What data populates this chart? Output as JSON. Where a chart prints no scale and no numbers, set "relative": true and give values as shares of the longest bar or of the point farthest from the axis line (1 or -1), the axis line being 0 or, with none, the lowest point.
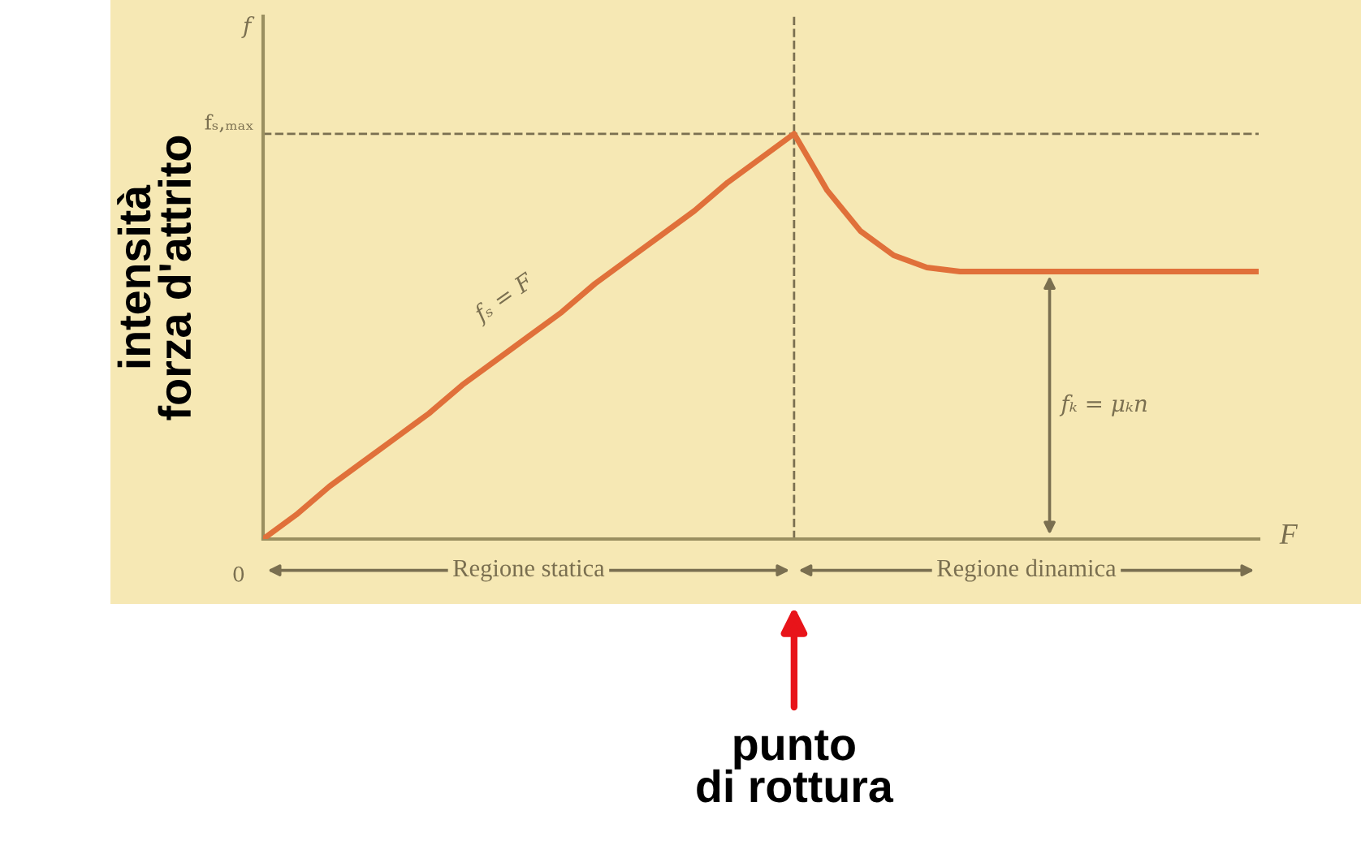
{
  "chart_data": {
    "type": "line",
    "relative": true,
    "ylabel": "intensità\nforza d'attrito",
    "xlabel": "F",
    "categories": [
      null,
      null,
      null,
      null,
      null,
      null,
      null,
      null,
      null,
      null,
      null,
      null,
      null,
      null,
      null,
      null,
      null,
      null,
      null,
      null,
      null,
      null,
      null,
      null,
      null,
      null,
      null,
      null,
      null,
      null,
      null
    ],
    "series": [
      {
        "color": "#e0703a",
        "values": [
          0,
          0.06,
          0.13,
          0.19,
          0.25,
          0.31,
          0.38,
          0.44,
          0.5,
          0.56,
          0.63,
          0.69,
          0.75,
          0.81,
          0.88,
          0.94,
          1,
          0.86,
          0.76,
          0.7,
          0.67,
          0.66,
          0.66,
          0.66,
          0.66,
          0.66,
          0.66,
          0.66,
          0.66,
          0.66,
          0.66
        ]
      }
    ],
    "ref_lines": [
      {
        "axis": "y",
        "value": 1,
        "line_style": "dashed",
        "color": "#7a6f50"
      }
    ],
    "annotations": [
      "0",
      "fₛ,ₘₐₓ",
      "f",
      "fₛ = F",
      "fₖ = μₖn",
      "Regione statica",
      "Regione dinamica",
      "punto\ndi rottura"
    ],
    "line_style": "solid"
  }
}
